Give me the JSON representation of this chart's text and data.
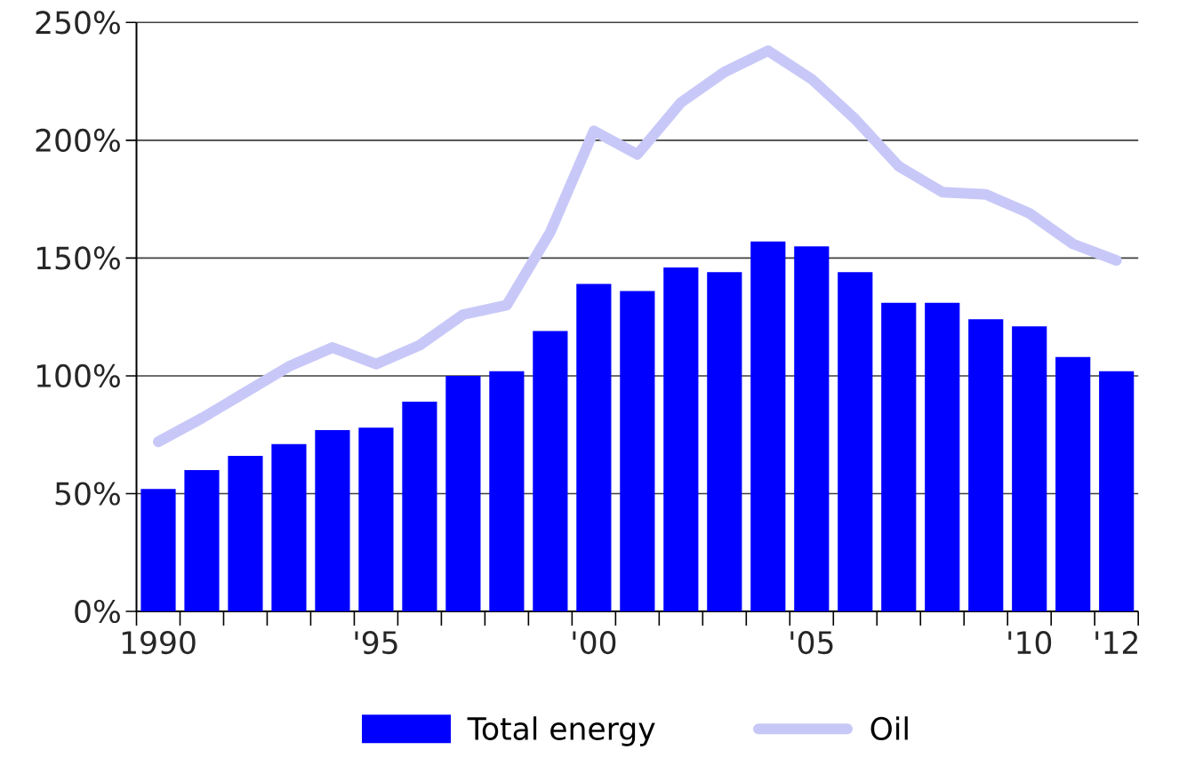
{
  "chart_data": {
    "type": "bar",
    "categories": [
      "1990",
      null,
      null,
      null,
      null,
      "'95",
      null,
      null,
      null,
      null,
      "'00",
      null,
      null,
      null,
      null,
      "'05",
      null,
      null,
      null,
      null,
      "'10",
      null,
      "'12"
    ],
    "series": [
      {
        "name": "Total energy",
        "color": "#0000ff",
        "values": [
          52,
          60,
          66,
          71,
          77,
          78,
          89,
          100,
          102,
          119,
          139,
          136,
          146,
          144,
          157,
          155,
          144,
          131,
          131,
          124,
          121,
          108,
          102
        ]
      },
      {
        "name": "Oil",
        "type": "line",
        "color": "#c8c8f8",
        "values": [
          72,
          82,
          93,
          104,
          112,
          105,
          113,
          126,
          130,
          161,
          204,
          194,
          216,
          229,
          238,
          226,
          209,
          189,
          178,
          177,
          169,
          156,
          149
        ]
      }
    ],
    "ylim": [
      0,
      250
    ],
    "yticks": [
      {
        "value": 0,
        "label": "0%"
      },
      {
        "value": 50,
        "label": "50%"
      },
      {
        "value": 100,
        "label": "100%"
      },
      {
        "value": 150,
        "label": "150%"
      },
      {
        "value": 200,
        "label": "200%"
      },
      {
        "value": 250,
        "label": "250%"
      }
    ],
    "grid": "y",
    "legend": "bottom"
  }
}
